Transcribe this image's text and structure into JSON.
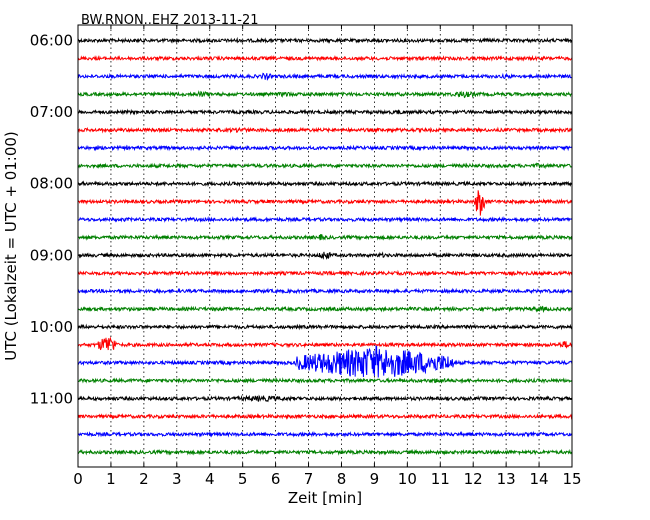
{
  "chart_data": {
    "type": "line",
    "title": "BW.RNON..EHZ 2013-11-21",
    "xlabel": "Zeit  [min]",
    "ylabel": "UTC (Lokalzeit = UTC + 01:00)",
    "xlim": [
      0,
      15
    ],
    "x_ticks": [
      0,
      1,
      2,
      3,
      4,
      5,
      6,
      7,
      8,
      9,
      10,
      11,
      12,
      13,
      14,
      15
    ],
    "x_tick_labels": [
      "0",
      "1",
      "2",
      "3",
      "4",
      "5",
      "6",
      "7",
      "8",
      "9",
      "10",
      "11",
      "12",
      "13",
      "14",
      "15"
    ],
    "y_tick_labels": [
      "06:00",
      "07:00",
      "08:00",
      "09:00",
      "10:00",
      "11:00"
    ],
    "grid": "vertical dotted",
    "trace_colors": [
      "#000000",
      "#ff0000",
      "#0000ff",
      "#008000"
    ],
    "trace_start_times": [
      "06:00",
      "06:15",
      "06:30",
      "06:45",
      "07:00",
      "07:15",
      "07:30",
      "07:45",
      "08:00",
      "08:15",
      "08:30",
      "08:45",
      "09:00",
      "09:15",
      "09:30",
      "09:45",
      "10:00",
      "10:15",
      "10:30",
      "10:45",
      "11:00",
      "11:15",
      "11:30",
      "11:45"
    ],
    "events": [
      {
        "trace": "06:00",
        "minute": 4.8,
        "amplitude": 2,
        "duration": 0.3
      },
      {
        "trace": "06:00",
        "minute": 12.0,
        "amplitude": 2,
        "duration": 0.2
      },
      {
        "trace": "06:30",
        "minute": 5.7,
        "amplitude": 4,
        "duration": 0.2
      },
      {
        "trace": "06:30",
        "minute": 13.0,
        "amplitude": 2.5,
        "duration": 0.3
      },
      {
        "trace": "06:45",
        "minute": 3.7,
        "amplitude": 3,
        "duration": 0.5
      },
      {
        "trace": "06:45",
        "minute": 6.3,
        "amplitude": 3,
        "duration": 0.3
      },
      {
        "trace": "06:45",
        "minute": 11.7,
        "amplitude": 3.5,
        "duration": 0.5
      },
      {
        "trace": "07:00",
        "minute": 9.7,
        "amplitude": 2.5,
        "duration": 0.4
      },
      {
        "trace": "07:15",
        "minute": 4.9,
        "amplitude": 2.5,
        "duration": 0.6
      },
      {
        "trace": "07:15",
        "minute": 9.5,
        "amplitude": 2,
        "duration": 0.3
      },
      {
        "trace": "07:45",
        "minute": 14.0,
        "amplitude": 2.5,
        "duration": 0.5
      },
      {
        "trace": "08:15",
        "minute": 12.2,
        "amplitude": 16,
        "duration": 0.15
      },
      {
        "trace": "08:30",
        "minute": 1.4,
        "amplitude": 2,
        "duration": 0.3
      },
      {
        "trace": "08:45",
        "minute": 7.4,
        "amplitude": 4,
        "duration": 0.1
      },
      {
        "trace": "09:00",
        "minute": 7.5,
        "amplitude": 5,
        "duration": 0.2
      },
      {
        "trace": "09:00",
        "minute": 9.2,
        "amplitude": 2.5,
        "duration": 0.3
      },
      {
        "trace": "09:15",
        "minute": 10.8,
        "amplitude": 2,
        "duration": 0.3
      },
      {
        "trace": "09:45",
        "minute": 14.0,
        "amplitude": 3,
        "duration": 0.4
      },
      {
        "trace": "10:15",
        "minute": 0.9,
        "amplitude": 10,
        "duration": 0.3
      },
      {
        "trace": "10:15",
        "minute": 14.8,
        "amplitude": 4,
        "duration": 0.25
      },
      {
        "trace": "10:30",
        "minute": 9.0,
        "amplitude": 17,
        "duration": 2.4
      },
      {
        "trace": "10:45",
        "minute": 11.0,
        "amplitude": 3,
        "duration": 0.4
      },
      {
        "trace": "10:45",
        "minute": 5.5,
        "amplitude": 2,
        "duration": 0.3
      },
      {
        "trace": "11:00",
        "minute": 5.6,
        "amplitude": 3,
        "duration": 1.2
      },
      {
        "trace": "11:00",
        "minute": 2.7,
        "amplitude": 1.5,
        "duration": 0.4
      }
    ]
  }
}
